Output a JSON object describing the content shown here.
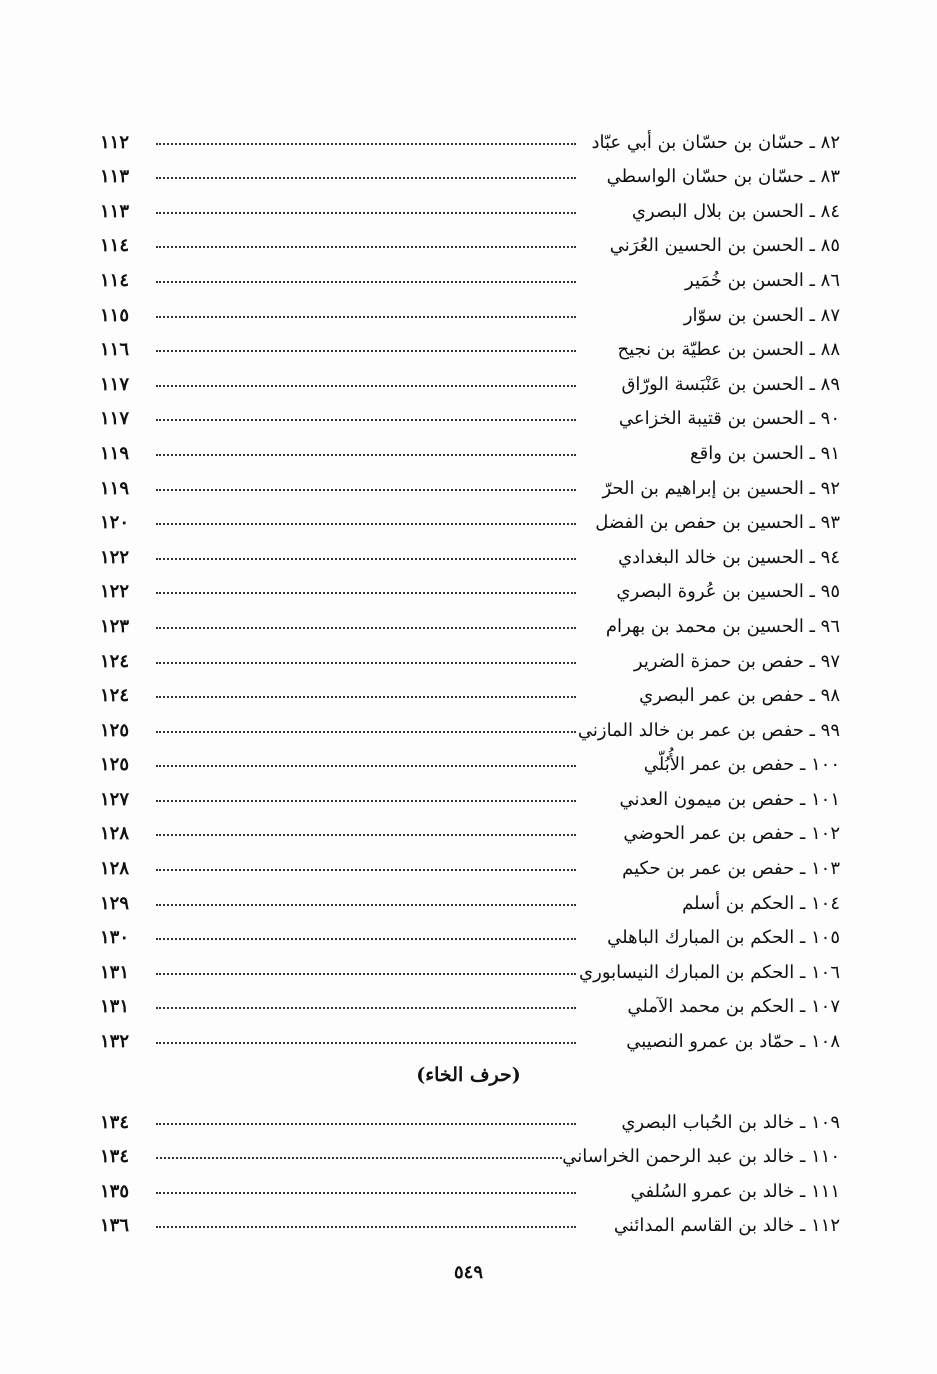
{
  "entries_group_1": [
    {
      "entry": "٨٢ ـ حسّان بن حسّان بن أبي عبّاد",
      "page": "١١٢"
    },
    {
      "entry": "٨٣ ـ حسّان بن حسّان الواسطي",
      "page": "١١٣"
    },
    {
      "entry": "٨٤ ـ الحسن بن بلال البصري",
      "page": "١١٣"
    },
    {
      "entry": "٨٥ ـ الحسن بن الحسين العُرَني",
      "page": "١١٤"
    },
    {
      "entry": "٨٦ ـ الحسن بن خُمَير",
      "page": "١١٤"
    },
    {
      "entry": "٨٧ ـ الحسن بن سوّار",
      "page": "١١٥"
    },
    {
      "entry": "٨٨ ـ الحسن بن عطيّة بن نجيح",
      "page": "١١٦"
    },
    {
      "entry": "٨٩ ـ الحسن بن عَنْبَسة الورّاق",
      "page": "١١٧"
    },
    {
      "entry": "٩٠ ـ الحسن بن قتيبة الخزاعي",
      "page": "١١٧"
    },
    {
      "entry": "٩١ ـ الحسن بن واقع",
      "page": "١١٩"
    },
    {
      "entry": "٩٢ ـ الحسين بن إبراهيم بن الحرّ",
      "page": "١١٩"
    },
    {
      "entry": "٩٣ ـ الحسين بن حفص بن الفضل",
      "page": "١٢٠"
    },
    {
      "entry": "٩٤ ـ الحسين بن خالد البغدادي",
      "page": "١٢٢"
    },
    {
      "entry": "٩٥ ـ الحسين بن عُروة البصري",
      "page": "١٢٢"
    },
    {
      "entry": "٩٦ ـ الحسين بن محمد بن بهرام",
      "page": "١٢٣"
    },
    {
      "entry": "٩٧ ـ حفص بن حمزة الضرير",
      "page": "١٢٤"
    },
    {
      "entry": "٩٨ ـ حفص بن عمر البصري",
      "page": "١٢٤"
    },
    {
      "entry": "٩٩ ـ حفص بن عمر بن خالد المازني",
      "page": "١٢٥"
    },
    {
      "entry": "١٠٠ ـ حفص بن عمر الأُبُلّي",
      "page": "١٢٥"
    },
    {
      "entry": "١٠١ ـ حفص بن ميمون العدني",
      "page": "١٢٧"
    },
    {
      "entry": "١٠٢ ـ حفص بن عمر الحوضي",
      "page": "١٢٨"
    },
    {
      "entry": "١٠٣ ـ حفص بن عمر بن حكيم",
      "page": "١٢٨"
    },
    {
      "entry": "١٠٤ ـ الحكم بن أسلم",
      "page": "١٢٩"
    },
    {
      "entry": "١٠٥ ـ الحكم بن المبارك الباهلي",
      "page": "١٣٠"
    },
    {
      "entry": "١٠٦ ـ الحكم بن المبارك النيسابوري",
      "page": "١٣١"
    },
    {
      "entry": "١٠٧ ـ الحكم بن محمد الآملي",
      "page": "١٣١"
    },
    {
      "entry": "١٠٨ ـ حمّاد بن عمرو النصيبي",
      "page": "١٣٢"
    }
  ],
  "section_heading": "(حرف الخاء)",
  "entries_group_2": [
    {
      "entry": "١٠٩ ـ خالد بن الحُباب البصري",
      "page": "١٣٤"
    },
    {
      "entry": "١١٠ ـ خالد بن عبد الرحمن الخراساني",
      "page": "١٣٤"
    },
    {
      "entry": "١١١ ـ خالد بن عمرو السُلفي",
      "page": "١٣٥"
    },
    {
      "entry": "١١٢ ـ خالد بن القاسم المدائني",
      "page": "١٣٦"
    }
  ],
  "page_number": "٥٤٩"
}
